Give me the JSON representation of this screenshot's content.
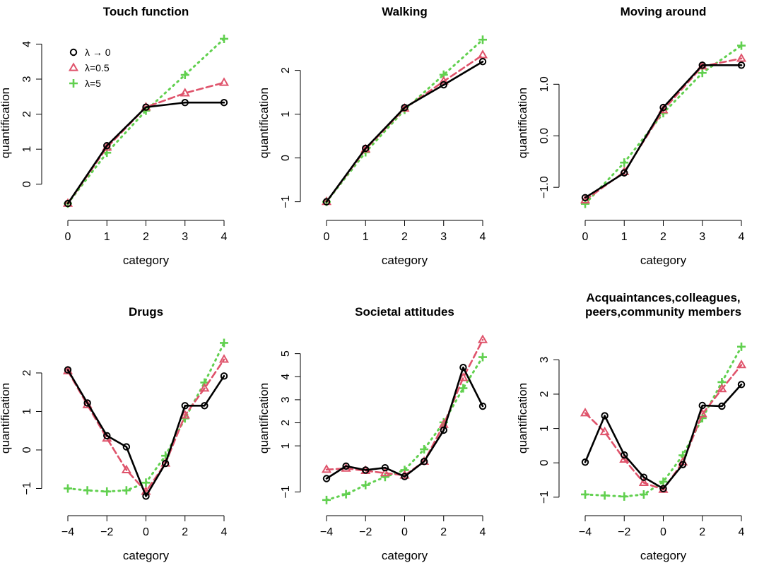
{
  "colors": {
    "black": "#000000",
    "red": "#DF536B",
    "green": "#61D04F"
  },
  "legend": {
    "labels": [
      "λ → 0",
      "λ=0.5",
      "λ=5"
    ],
    "placement": "top-left of first panel"
  },
  "chart_data": [
    {
      "type": "line",
      "title": "Touch function",
      "xlabel": "category",
      "ylabel": "quantification",
      "x": [
        0,
        1,
        2,
        3,
        4
      ],
      "xticks": [
        "0",
        "1",
        "2",
        "3",
        "4"
      ],
      "yticks": [
        "0",
        "1",
        "2",
        "3",
        "4"
      ],
      "ylim": [
        -0.75,
        4.25
      ],
      "series": [
        {
          "name": "λ → 0",
          "values": [
            -0.55,
            1.1,
            2.2,
            2.33,
            2.33
          ]
        },
        {
          "name": "λ=0.5",
          "values": [
            -0.55,
            1.05,
            2.2,
            2.6,
            2.9
          ]
        },
        {
          "name": "λ=5",
          "values": [
            -0.55,
            0.9,
            2.1,
            3.12,
            4.15
          ]
        }
      ]
    },
    {
      "type": "line",
      "title": "Walking",
      "xlabel": "category",
      "ylabel": "quantification",
      "x": [
        0,
        1,
        2,
        3,
        4
      ],
      "xticks": [
        "0",
        "1",
        "2",
        "3",
        "4"
      ],
      "yticks": [
        "−1",
        "0",
        "1",
        "2"
      ],
      "ylim": [
        -1.2,
        2.8
      ],
      "series": [
        {
          "name": "λ → 0",
          "values": [
            -1.0,
            0.22,
            1.15,
            1.67,
            2.2
          ]
        },
        {
          "name": "λ=0.5",
          "values": [
            -1.0,
            0.2,
            1.13,
            1.75,
            2.35
          ]
        },
        {
          "name": "λ=5",
          "values": [
            -1.0,
            0.13,
            1.1,
            1.9,
            2.7
          ]
        }
      ]
    },
    {
      "type": "line",
      "title": "Moving around",
      "xlabel": "category",
      "ylabel": "quantification",
      "x": [
        0,
        1,
        2,
        3,
        4
      ],
      "xticks": [
        "0",
        "1",
        "2",
        "3",
        "4"
      ],
      "yticks": [
        "−1.0",
        "0.0",
        "1.0"
      ],
      "ylim": [
        -1.45,
        1.95
      ],
      "series": [
        {
          "name": "λ → 0",
          "values": [
            -1.2,
            -0.72,
            0.55,
            1.37,
            1.37
          ]
        },
        {
          "name": "λ=0.5",
          "values": [
            -1.25,
            -0.7,
            0.5,
            1.35,
            1.5
          ]
        },
        {
          "name": "λ=5",
          "values": [
            -1.32,
            -0.52,
            0.44,
            1.22,
            1.75
          ]
        }
      ]
    },
    {
      "type": "line",
      "title": "Drugs",
      "xlabel": "category",
      "ylabel": "quantification",
      "x": [
        -4,
        -3,
        -2,
        -1,
        0,
        1,
        2,
        3,
        4
      ],
      "xticks": [
        "−4",
        "−2",
        "0",
        "2",
        "4"
      ],
      "yticks": [
        "−1",
        "0",
        "1",
        "2"
      ],
      "ylim": [
        -1.45,
        3.1
      ],
      "series": [
        {
          "name": "λ → 0",
          "values": [
            2.08,
            1.22,
            0.37,
            0.08,
            -1.2,
            -0.35,
            1.15,
            1.15,
            1.92
          ]
        },
        {
          "name": "λ=0.5",
          "values": [
            2.05,
            1.17,
            0.3,
            -0.52,
            -1.08,
            -0.35,
            0.9,
            1.6,
            2.35
          ]
        },
        {
          "name": "λ=5",
          "values": [
            -1.0,
            -1.05,
            -1.08,
            -1.05,
            -0.85,
            -0.15,
            0.82,
            1.75,
            2.78
          ]
        }
      ]
    },
    {
      "type": "line",
      "title": "Societal attitudes",
      "xlabel": "category",
      "ylabel": "quantification",
      "x": [
        -4,
        -3,
        -2,
        -1,
        0,
        1,
        2,
        3,
        4
      ],
      "xticks": [
        "−4",
        "−2",
        "0",
        "2",
        "4"
      ],
      "yticks": [
        "−1",
        "1",
        "2",
        "3",
        "4",
        "5"
      ],
      "ylim": [
        -1.6,
        6.0
      ],
      "series": [
        {
          "name": "λ → 0",
          "values": [
            -0.42,
            0.12,
            -0.05,
            0.05,
            -0.33,
            0.32,
            1.68,
            4.4,
            2.72
          ]
        },
        {
          "name": "λ=0.5",
          "values": [
            -0.03,
            0.02,
            -0.08,
            -0.18,
            -0.28,
            0.32,
            1.92,
            3.95,
            5.6
          ]
        },
        {
          "name": "λ=5",
          "values": [
            -1.35,
            -1.1,
            -0.7,
            -0.35,
            -0.05,
            0.85,
            2.02,
            3.5,
            4.85
          ]
        }
      ]
    },
    {
      "type": "line",
      "title": "Acquaintances,colleagues,\npeers,community members",
      "xlabel": "category",
      "ylabel": "quantification",
      "x": [
        -4,
        -3,
        -2,
        -1,
        0,
        1,
        2,
        3,
        4
      ],
      "xticks": [
        "−4",
        "−2",
        "0",
        "2",
        "4"
      ],
      "yticks": [
        "−1",
        "0",
        "1",
        "2",
        "3"
      ],
      "ylim": [
        -1.25,
        3.85
      ],
      "series": [
        {
          "name": "λ → 0",
          "values": [
            0.02,
            1.37,
            0.23,
            -0.42,
            -0.75,
            -0.05,
            1.67,
            1.65,
            2.28
          ]
        },
        {
          "name": "λ=0.5",
          "values": [
            1.45,
            0.9,
            0.1,
            -0.58,
            -0.78,
            0.02,
            1.42,
            2.15,
            2.85
          ]
        },
        {
          "name": "λ=5",
          "values": [
            -0.92,
            -0.95,
            -0.98,
            -0.92,
            -0.55,
            0.22,
            1.3,
            2.35,
            3.38
          ]
        }
      ]
    }
  ]
}
